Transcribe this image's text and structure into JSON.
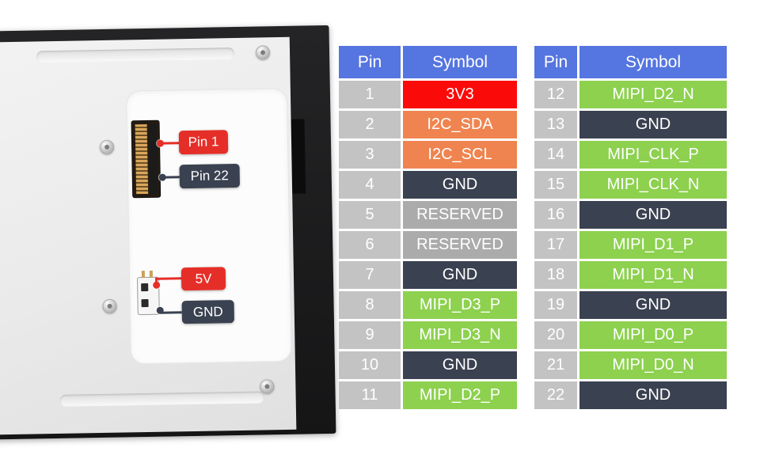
{
  "figure": {
    "callouts": {
      "pin1": {
        "label": "Pin 1",
        "color": "badge_red"
      },
      "pin22": {
        "label": "Pin 22",
        "color": "badge_dark"
      },
      "v5": {
        "label": "5V",
        "color": "badge_red"
      },
      "gnd": {
        "label": "GND",
        "color": "badge_dark"
      }
    }
  },
  "colors": {
    "header": "#5575e0",
    "pin": "#c3c3c3",
    "red": "#fb0a0a",
    "orange": "#ef8450",
    "dark": "#3a4150",
    "gray": "#ababab",
    "green": "#8dd14f",
    "badge_red": "#e62e28",
    "badge_dark": "#3a4150"
  },
  "tables": [
    {
      "headers": [
        "Pin",
        "Symbol"
      ],
      "rows": [
        {
          "pin": "1",
          "symbol": "3V3",
          "color": "red"
        },
        {
          "pin": "2",
          "symbol": "I2C_SDA",
          "color": "orange"
        },
        {
          "pin": "3",
          "symbol": "I2C_SCL",
          "color": "orange"
        },
        {
          "pin": "4",
          "symbol": "GND",
          "color": "dark"
        },
        {
          "pin": "5",
          "symbol": "RESERVED",
          "color": "gray"
        },
        {
          "pin": "6",
          "symbol": "RESERVED",
          "color": "gray"
        },
        {
          "pin": "7",
          "symbol": "GND",
          "color": "dark"
        },
        {
          "pin": "8",
          "symbol": "MIPI_D3_P",
          "color": "green"
        },
        {
          "pin": "9",
          "symbol": "MIPI_D3_N",
          "color": "green"
        },
        {
          "pin": "10",
          "symbol": "GND",
          "color": "dark"
        },
        {
          "pin": "11",
          "symbol": "MIPI_D2_P",
          "color": "green"
        }
      ]
    },
    {
      "headers": [
        "Pin",
        "Symbol"
      ],
      "rows": [
        {
          "pin": "12",
          "symbol": "MIPI_D2_N",
          "color": "green"
        },
        {
          "pin": "13",
          "symbol": "GND",
          "color": "dark"
        },
        {
          "pin": "14",
          "symbol": "MIPI_CLK_P",
          "color": "green"
        },
        {
          "pin": "15",
          "symbol": "MIPI_CLK_N",
          "color": "green"
        },
        {
          "pin": "16",
          "symbol": "GND",
          "color": "dark"
        },
        {
          "pin": "17",
          "symbol": "MIPI_D1_P",
          "color": "green"
        },
        {
          "pin": "18",
          "symbol": "MIPI_D1_N",
          "color": "green"
        },
        {
          "pin": "19",
          "symbol": "GND",
          "color": "dark"
        },
        {
          "pin": "20",
          "symbol": "MIPI_D0_P",
          "color": "green"
        },
        {
          "pin": "21",
          "symbol": "MIPI_D0_N",
          "color": "green"
        },
        {
          "pin": "22",
          "symbol": "GND",
          "color": "dark"
        }
      ]
    }
  ]
}
